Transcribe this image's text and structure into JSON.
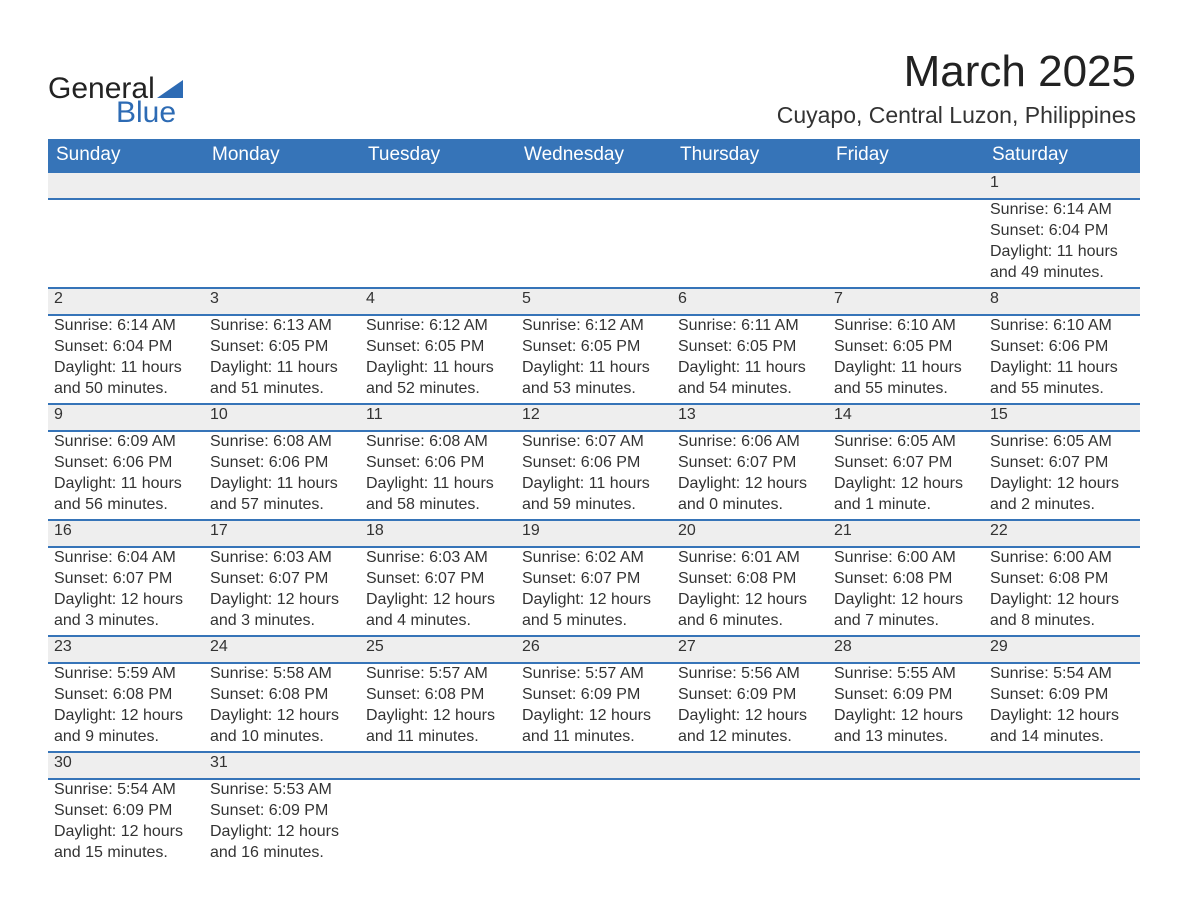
{
  "logo": {
    "text_a": "General",
    "text_b": "Blue",
    "triangle_color": "#2d6bb4"
  },
  "title": "March 2025",
  "location": "Cuyapo, Central Luzon, Philippines",
  "theme": {
    "header_bg": "#3674b8",
    "header_fg": "#ffffff",
    "daynum_bg": "#eeeeee",
    "row_border": "#3674b8",
    "text_color": "#333333"
  },
  "day_names": [
    "Sunday",
    "Monday",
    "Tuesday",
    "Wednesday",
    "Thursday",
    "Friday",
    "Saturday"
  ],
  "weeks": [
    [
      {
        "n": "",
        "sunrise": "",
        "sunset": "",
        "daylight": ""
      },
      {
        "n": "",
        "sunrise": "",
        "sunset": "",
        "daylight": ""
      },
      {
        "n": "",
        "sunrise": "",
        "sunset": "",
        "daylight": ""
      },
      {
        "n": "",
        "sunrise": "",
        "sunset": "",
        "daylight": ""
      },
      {
        "n": "",
        "sunrise": "",
        "sunset": "",
        "daylight": ""
      },
      {
        "n": "",
        "sunrise": "",
        "sunset": "",
        "daylight": ""
      },
      {
        "n": "1",
        "sunrise": "Sunrise: 6:14 AM",
        "sunset": "Sunset: 6:04 PM",
        "daylight": "Daylight: 11 hours and 49 minutes."
      }
    ],
    [
      {
        "n": "2",
        "sunrise": "Sunrise: 6:14 AM",
        "sunset": "Sunset: 6:04 PM",
        "daylight": "Daylight: 11 hours and 50 minutes."
      },
      {
        "n": "3",
        "sunrise": "Sunrise: 6:13 AM",
        "sunset": "Sunset: 6:05 PM",
        "daylight": "Daylight: 11 hours and 51 minutes."
      },
      {
        "n": "4",
        "sunrise": "Sunrise: 6:12 AM",
        "sunset": "Sunset: 6:05 PM",
        "daylight": "Daylight: 11 hours and 52 minutes."
      },
      {
        "n": "5",
        "sunrise": "Sunrise: 6:12 AM",
        "sunset": "Sunset: 6:05 PM",
        "daylight": "Daylight: 11 hours and 53 minutes."
      },
      {
        "n": "6",
        "sunrise": "Sunrise: 6:11 AM",
        "sunset": "Sunset: 6:05 PM",
        "daylight": "Daylight: 11 hours and 54 minutes."
      },
      {
        "n": "7",
        "sunrise": "Sunrise: 6:10 AM",
        "sunset": "Sunset: 6:05 PM",
        "daylight": "Daylight: 11 hours and 55 minutes."
      },
      {
        "n": "8",
        "sunrise": "Sunrise: 6:10 AM",
        "sunset": "Sunset: 6:06 PM",
        "daylight": "Daylight: 11 hours and 55 minutes."
      }
    ],
    [
      {
        "n": "9",
        "sunrise": "Sunrise: 6:09 AM",
        "sunset": "Sunset: 6:06 PM",
        "daylight": "Daylight: 11 hours and 56 minutes."
      },
      {
        "n": "10",
        "sunrise": "Sunrise: 6:08 AM",
        "sunset": "Sunset: 6:06 PM",
        "daylight": "Daylight: 11 hours and 57 minutes."
      },
      {
        "n": "11",
        "sunrise": "Sunrise: 6:08 AM",
        "sunset": "Sunset: 6:06 PM",
        "daylight": "Daylight: 11 hours and 58 minutes."
      },
      {
        "n": "12",
        "sunrise": "Sunrise: 6:07 AM",
        "sunset": "Sunset: 6:06 PM",
        "daylight": "Daylight: 11 hours and 59 minutes."
      },
      {
        "n": "13",
        "sunrise": "Sunrise: 6:06 AM",
        "sunset": "Sunset: 6:07 PM",
        "daylight": "Daylight: 12 hours and 0 minutes."
      },
      {
        "n": "14",
        "sunrise": "Sunrise: 6:05 AM",
        "sunset": "Sunset: 6:07 PM",
        "daylight": "Daylight: 12 hours and 1 minute."
      },
      {
        "n": "15",
        "sunrise": "Sunrise: 6:05 AM",
        "sunset": "Sunset: 6:07 PM",
        "daylight": "Daylight: 12 hours and 2 minutes."
      }
    ],
    [
      {
        "n": "16",
        "sunrise": "Sunrise: 6:04 AM",
        "sunset": "Sunset: 6:07 PM",
        "daylight": "Daylight: 12 hours and 3 minutes."
      },
      {
        "n": "17",
        "sunrise": "Sunrise: 6:03 AM",
        "sunset": "Sunset: 6:07 PM",
        "daylight": "Daylight: 12 hours and 3 minutes."
      },
      {
        "n": "18",
        "sunrise": "Sunrise: 6:03 AM",
        "sunset": "Sunset: 6:07 PM",
        "daylight": "Daylight: 12 hours and 4 minutes."
      },
      {
        "n": "19",
        "sunrise": "Sunrise: 6:02 AM",
        "sunset": "Sunset: 6:07 PM",
        "daylight": "Daylight: 12 hours and 5 minutes."
      },
      {
        "n": "20",
        "sunrise": "Sunrise: 6:01 AM",
        "sunset": "Sunset: 6:08 PM",
        "daylight": "Daylight: 12 hours and 6 minutes."
      },
      {
        "n": "21",
        "sunrise": "Sunrise: 6:00 AM",
        "sunset": "Sunset: 6:08 PM",
        "daylight": "Daylight: 12 hours and 7 minutes."
      },
      {
        "n": "22",
        "sunrise": "Sunrise: 6:00 AM",
        "sunset": "Sunset: 6:08 PM",
        "daylight": "Daylight: 12 hours and 8 minutes."
      }
    ],
    [
      {
        "n": "23",
        "sunrise": "Sunrise: 5:59 AM",
        "sunset": "Sunset: 6:08 PM",
        "daylight": "Daylight: 12 hours and 9 minutes."
      },
      {
        "n": "24",
        "sunrise": "Sunrise: 5:58 AM",
        "sunset": "Sunset: 6:08 PM",
        "daylight": "Daylight: 12 hours and 10 minutes."
      },
      {
        "n": "25",
        "sunrise": "Sunrise: 5:57 AM",
        "sunset": "Sunset: 6:08 PM",
        "daylight": "Daylight: 12 hours and 11 minutes."
      },
      {
        "n": "26",
        "sunrise": "Sunrise: 5:57 AM",
        "sunset": "Sunset: 6:09 PM",
        "daylight": "Daylight: 12 hours and 11 minutes."
      },
      {
        "n": "27",
        "sunrise": "Sunrise: 5:56 AM",
        "sunset": "Sunset: 6:09 PM",
        "daylight": "Daylight: 12 hours and 12 minutes."
      },
      {
        "n": "28",
        "sunrise": "Sunrise: 5:55 AM",
        "sunset": "Sunset: 6:09 PM",
        "daylight": "Daylight: 12 hours and 13 minutes."
      },
      {
        "n": "29",
        "sunrise": "Sunrise: 5:54 AM",
        "sunset": "Sunset: 6:09 PM",
        "daylight": "Daylight: 12 hours and 14 minutes."
      }
    ],
    [
      {
        "n": "30",
        "sunrise": "Sunrise: 5:54 AM",
        "sunset": "Sunset: 6:09 PM",
        "daylight": "Daylight: 12 hours and 15 minutes."
      },
      {
        "n": "31",
        "sunrise": "Sunrise: 5:53 AM",
        "sunset": "Sunset: 6:09 PM",
        "daylight": "Daylight: 12 hours and 16 minutes."
      },
      {
        "n": "",
        "sunrise": "",
        "sunset": "",
        "daylight": ""
      },
      {
        "n": "",
        "sunrise": "",
        "sunset": "",
        "daylight": ""
      },
      {
        "n": "",
        "sunrise": "",
        "sunset": "",
        "daylight": ""
      },
      {
        "n": "",
        "sunrise": "",
        "sunset": "",
        "daylight": ""
      },
      {
        "n": "",
        "sunrise": "",
        "sunset": "",
        "daylight": ""
      }
    ]
  ]
}
